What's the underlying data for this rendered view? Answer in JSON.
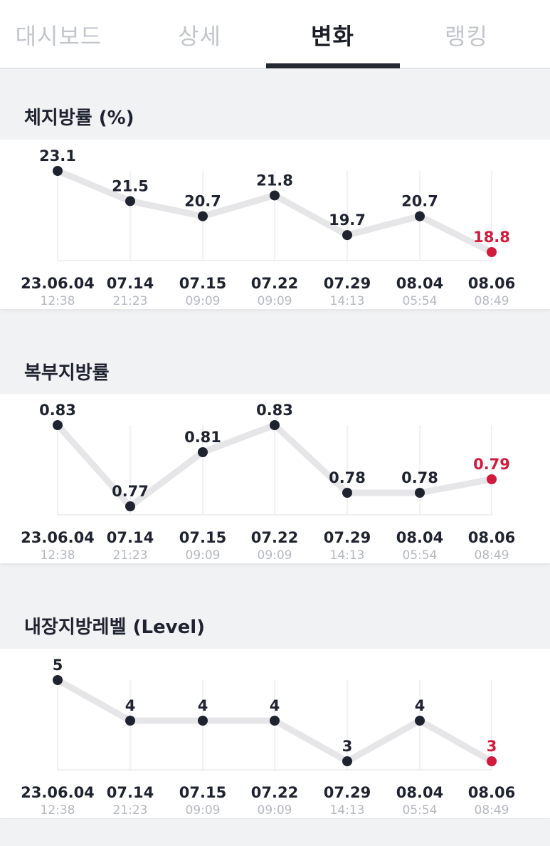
{
  "tabs": [
    {
      "label": "대시보드",
      "active": false
    },
    {
      "label": "상세",
      "active": false
    },
    {
      "label": "변화",
      "active": true
    },
    {
      "label": "랭킹",
      "active": false
    }
  ],
  "colors": {
    "line": "#e6e6e8",
    "point": "#1f2330",
    "highlight": "#d21a3c",
    "date_sub": "#b5b8bf",
    "grid": "#ececef"
  },
  "dates": [
    {
      "date": "23.06.04",
      "time": "12:38"
    },
    {
      "date": "07.14",
      "time": "21:23"
    },
    {
      "date": "07.15",
      "time": "09:09"
    },
    {
      "date": "07.22",
      "time": "09:09"
    },
    {
      "date": "07.29",
      "time": "14:13"
    },
    {
      "date": "08.04",
      "time": "05:54"
    },
    {
      "date": "08.06",
      "time": "08:49"
    }
  ],
  "sections": [
    {
      "title": "체지방률 (%)"
    },
    {
      "title": "복부지방률"
    },
    {
      "title": "내장지방레벨 (Level)"
    }
  ],
  "chart_data": [
    {
      "type": "line",
      "title": "체지방률 (%)",
      "categories": [
        "23.06.04 12:38",
        "07.14 21:23",
        "07.15 09:09",
        "07.22 09:09",
        "07.29 14:13",
        "08.04 05:54",
        "08.06 08:49"
      ],
      "values": [
        23.1,
        21.5,
        20.7,
        21.8,
        19.7,
        20.7,
        18.8
      ],
      "labels": [
        "23.1",
        "21.5",
        "20.7",
        "21.8",
        "19.7",
        "20.7",
        "18.8"
      ],
      "highlight_last": true,
      "grid": "vertical"
    },
    {
      "type": "line",
      "title": "복부지방률",
      "categories": [
        "23.06.04 12:38",
        "07.14 21:23",
        "07.15 09:09",
        "07.22 09:09",
        "07.29 14:13",
        "08.04 05:54",
        "08.06 08:49"
      ],
      "values": [
        0.83,
        0.77,
        0.81,
        0.83,
        0.78,
        0.78,
        0.79
      ],
      "labels": [
        "0.83",
        "0.77",
        "0.81",
        "0.83",
        "0.78",
        "0.78",
        "0.79"
      ],
      "highlight_last": true,
      "grid": "vertical"
    },
    {
      "type": "line",
      "title": "내장지방레벨 (Level)",
      "categories": [
        "23.06.04 12:38",
        "07.14 21:23",
        "07.15 09:09",
        "07.22 09:09",
        "07.29 14:13",
        "08.04 05:54",
        "08.06 08:49"
      ],
      "values": [
        5,
        4,
        4,
        4,
        3,
        4,
        3
      ],
      "labels": [
        "5",
        "4",
        "4",
        "4",
        "3",
        "4",
        "3"
      ],
      "highlight_last": true,
      "grid": "vertical"
    }
  ]
}
